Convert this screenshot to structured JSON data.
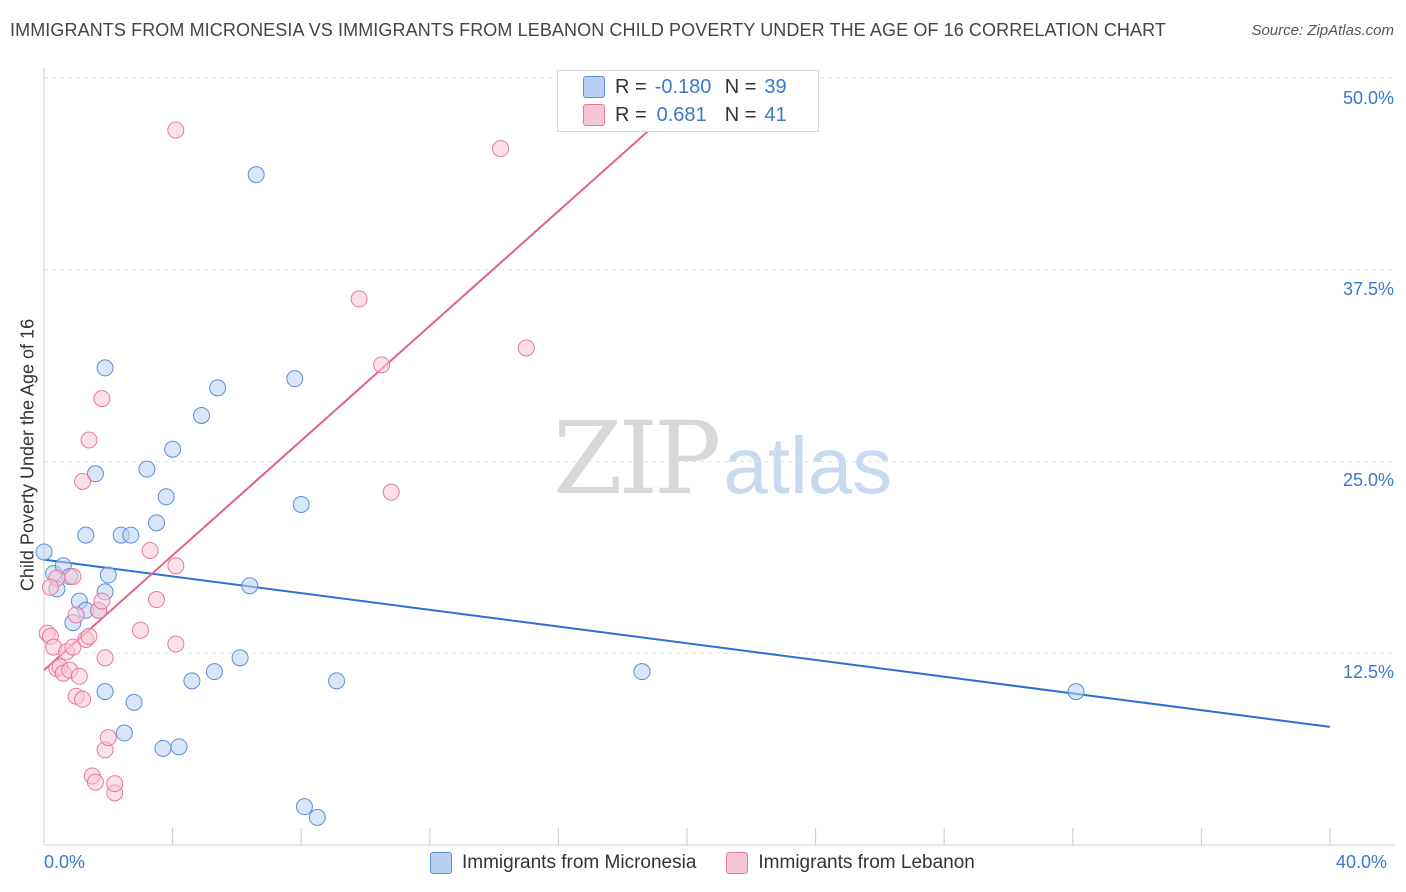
{
  "title": "IMMIGRANTS FROM MICRONESIA VS IMMIGRANTS FROM LEBANON CHILD POVERTY UNDER THE AGE OF 16 CORRELATION CHART",
  "source": "Source: ZipAtlas.com",
  "watermark": {
    "zip": "ZIP",
    "atlas": "atlas"
  },
  "legend_top": {
    "row1": {
      "r_label": "R =",
      "r_value": "-0.180",
      "n_label": "N =",
      "n_value": "39"
    },
    "row2": {
      "r_label": "R =",
      "r_value": "0.681",
      "n_label": "N =",
      "n_value": "41"
    }
  },
  "chart_data": {
    "type": "scatter",
    "title": "IMMIGRANTS FROM MICRONESIA VS IMMIGRANTS FROM LEBANON CHILD POVERTY UNDER THE AGE OF 16 CORRELATION CHART",
    "xlabel": "",
    "ylabel": "Child Poverty Under the Age of 16",
    "xlim": [
      0,
      40
    ],
    "ylim": [
      0,
      50
    ],
    "x_tick_labels": [
      "0.0%",
      "40.0%"
    ],
    "y_tick_labels": [
      "12.5%",
      "25.0%",
      "37.5%",
      "50.0%"
    ],
    "y_ticks": [
      12.5,
      25,
      37.5,
      50
    ],
    "legend_placement": "bottom-center",
    "series": [
      {
        "name": "Immigrants from Micronesia",
        "color": "#5b8fd8",
        "fill": "#b9d0f2",
        "R": -0.18,
        "N": 39,
        "trend": {
          "x": [
            0,
            40
          ],
          "y": [
            18.6,
            7.7
          ]
        },
        "points": [
          [
            0.0,
            19.1
          ],
          [
            0.3,
            17.7
          ],
          [
            0.6,
            18.2
          ],
          [
            0.4,
            16.7
          ],
          [
            0.8,
            17.5
          ],
          [
            1.1,
            15.9
          ],
          [
            1.3,
            15.3
          ],
          [
            1.7,
            15.3
          ],
          [
            0.9,
            14.5
          ],
          [
            1.9,
            16.5
          ],
          [
            2.4,
            20.2
          ],
          [
            2.7,
            20.2
          ],
          [
            1.3,
            20.2
          ],
          [
            2.0,
            17.6
          ],
          [
            3.5,
            21.0
          ],
          [
            3.8,
            22.7
          ],
          [
            3.2,
            24.5
          ],
          [
            4.0,
            25.8
          ],
          [
            1.6,
            24.2
          ],
          [
            4.9,
            28.0
          ],
          [
            5.4,
            29.8
          ],
          [
            1.9,
            31.1
          ],
          [
            7.8,
            30.4
          ],
          [
            6.6,
            43.7
          ],
          [
            8.0,
            22.2
          ],
          [
            6.4,
            16.9
          ],
          [
            6.1,
            12.2
          ],
          [
            5.3,
            11.3
          ],
          [
            4.6,
            10.7
          ],
          [
            9.1,
            10.7
          ],
          [
            2.8,
            9.3
          ],
          [
            1.9,
            10.0
          ],
          [
            2.5,
            7.3
          ],
          [
            3.7,
            6.3
          ],
          [
            4.2,
            6.4
          ],
          [
            8.1,
            2.5
          ],
          [
            8.5,
            1.8
          ],
          [
            18.6,
            11.3
          ],
          [
            32.1,
            10.0
          ]
        ]
      },
      {
        "name": "Immigrants from Lebanon",
        "color": "#e8799c",
        "fill": "#f7c6d5",
        "R": 0.681,
        "N": 41,
        "trend": {
          "x": [
            0,
            20
          ],
          "y": [
            11.4,
            48.8
          ]
        },
        "points": [
          [
            0.1,
            13.8
          ],
          [
            0.2,
            13.6
          ],
          [
            0.3,
            12.9
          ],
          [
            0.4,
            11.5
          ],
          [
            0.5,
            11.6
          ],
          [
            0.6,
            11.2
          ],
          [
            0.8,
            11.4
          ],
          [
            0.7,
            12.6
          ],
          [
            0.9,
            12.9
          ],
          [
            1.1,
            11.0
          ],
          [
            1.3,
            13.4
          ],
          [
            1.4,
            13.6
          ],
          [
            1.0,
            15.0
          ],
          [
            1.7,
            15.3
          ],
          [
            1.8,
            15.9
          ],
          [
            0.9,
            17.5
          ],
          [
            1.0,
            9.7
          ],
          [
            1.2,
            9.5
          ],
          [
            1.9,
            12.2
          ],
          [
            3.0,
            14.0
          ],
          [
            3.5,
            16.0
          ],
          [
            4.1,
            13.1
          ],
          [
            3.3,
            19.2
          ],
          [
            4.1,
            18.2
          ],
          [
            1.2,
            23.7
          ],
          [
            1.4,
            26.4
          ],
          [
            1.8,
            29.1
          ],
          [
            4.1,
            46.6
          ],
          [
            9.8,
            35.6
          ],
          [
            10.5,
            31.3
          ],
          [
            10.8,
            23.0
          ],
          [
            14.2,
            45.4
          ],
          [
            15.0,
            32.4
          ],
          [
            1.9,
            6.2
          ],
          [
            2.0,
            7.0
          ],
          [
            1.5,
            4.5
          ],
          [
            1.6,
            4.1
          ],
          [
            2.2,
            3.4
          ],
          [
            2.2,
            4.0
          ],
          [
            0.4,
            17.4
          ],
          [
            0.2,
            16.8
          ]
        ]
      }
    ]
  },
  "bottom_legend": {
    "item1": "Immigrants from Micronesia",
    "item2": "Immigrants from Lebanon"
  }
}
